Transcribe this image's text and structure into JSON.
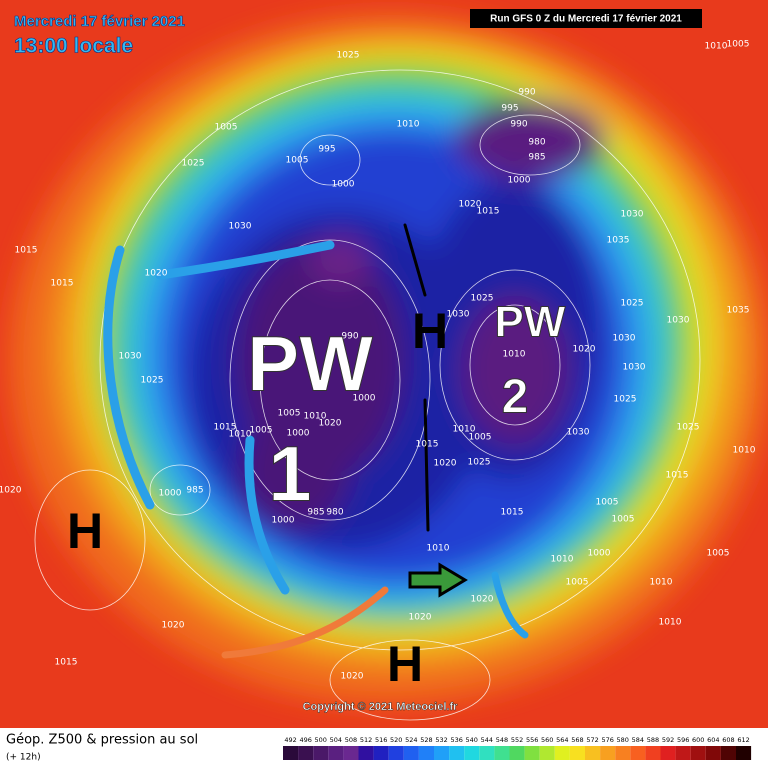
{
  "header": {
    "date": "Mercredi 17 février 2021",
    "time": "13:00 locale",
    "run": "Run GFS 0 Z du Mercredi 17 février 2021"
  },
  "annotations": [
    "PW",
    "1",
    "PW",
    "2",
    "H",
    "H",
    "H"
  ],
  "pressure_labels": [
    "1025",
    "1010",
    "1005",
    "990",
    "995",
    "990",
    "980",
    "985",
    "1005",
    "1010",
    "995",
    "1005",
    "1000",
    "1025",
    "1000",
    "1020",
    "1015",
    "1030",
    "1030",
    "1035",
    "1015",
    "1020",
    "1015",
    "1025",
    "1030",
    "1025",
    "1030",
    "1035",
    "1030",
    "1020",
    "1010",
    "1030",
    "1030",
    "1025",
    "990",
    "1000",
    "1005",
    "1010",
    "1020",
    "1025",
    "1015",
    "1010",
    "1005",
    "1000",
    "1010",
    "1005",
    "1015",
    "1030",
    "1025",
    "1010",
    "1020",
    "1025",
    "1015",
    "1020",
    "1000",
    "985",
    "985",
    "980",
    "1000",
    "1015",
    "1005",
    "1005",
    "1010",
    "1010",
    "1000",
    "1005",
    "1020",
    "1010",
    "1020",
    "1020",
    "1015",
    "1020",
    "1010",
    "1005"
  ],
  "footer": {
    "title": "Géop. Z500 & pression au sol",
    "lead": "(+ 12h)",
    "copyright": "Copyright © 2021 Meteociel.fr"
  },
  "legend": [
    492,
    496,
    500,
    504,
    508,
    512,
    516,
    520,
    524,
    528,
    532,
    536,
    540,
    544,
    548,
    552,
    556,
    560,
    564,
    568,
    572,
    576,
    580,
    584,
    588,
    592,
    596,
    600,
    604,
    608,
    612
  ]
}
